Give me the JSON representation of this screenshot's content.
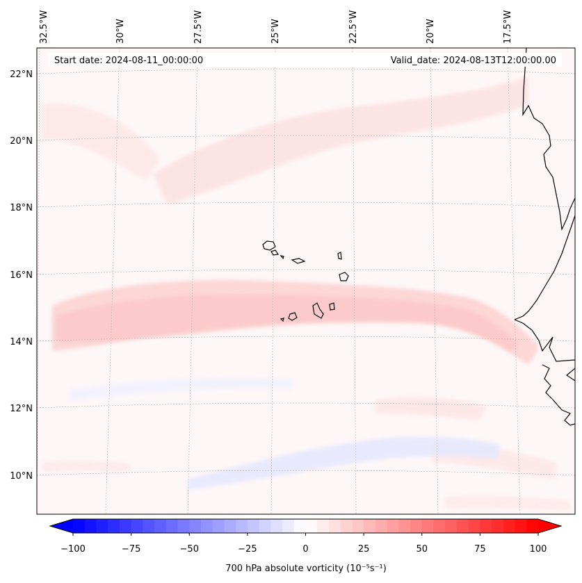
{
  "map": {
    "lon_labels": [
      "32.5°W",
      "30°W",
      "27.5°W",
      "25°W",
      "22.5°W",
      "20°W",
      "17.5°W"
    ],
    "lat_labels": [
      "22°N",
      "20°N",
      "18°N",
      "16°N",
      "14°N",
      "12°N",
      "10°N"
    ],
    "start_date": "Start date: 2024-08-11_00:00:00",
    "valid_date": "Valid_date: 2024-08-13T12:00:00.00",
    "field": "700 hPa absolute vorticity",
    "units_text": "(10⁻⁵s⁻¹)"
  },
  "colorbar": {
    "label": "700 hPa absolute vorticity (10⁻⁵s⁻¹)",
    "min": -100,
    "max": 100,
    "step": 5,
    "ticks": [
      -100,
      -75,
      -50,
      -25,
      0,
      25,
      50,
      75,
      100
    ],
    "tick_labels": [
      "−100",
      "−75",
      "−50",
      "−25",
      "0",
      "25",
      "50",
      "75",
      "100"
    ],
    "colormap": "bwr",
    "extend": "both"
  },
  "colors": {
    "negative_end": "#0000ff",
    "neutral": "#ffffff",
    "positive_end": "#ff0000",
    "coastline": "#000000",
    "gridline": "#bbbbbb"
  }
}
